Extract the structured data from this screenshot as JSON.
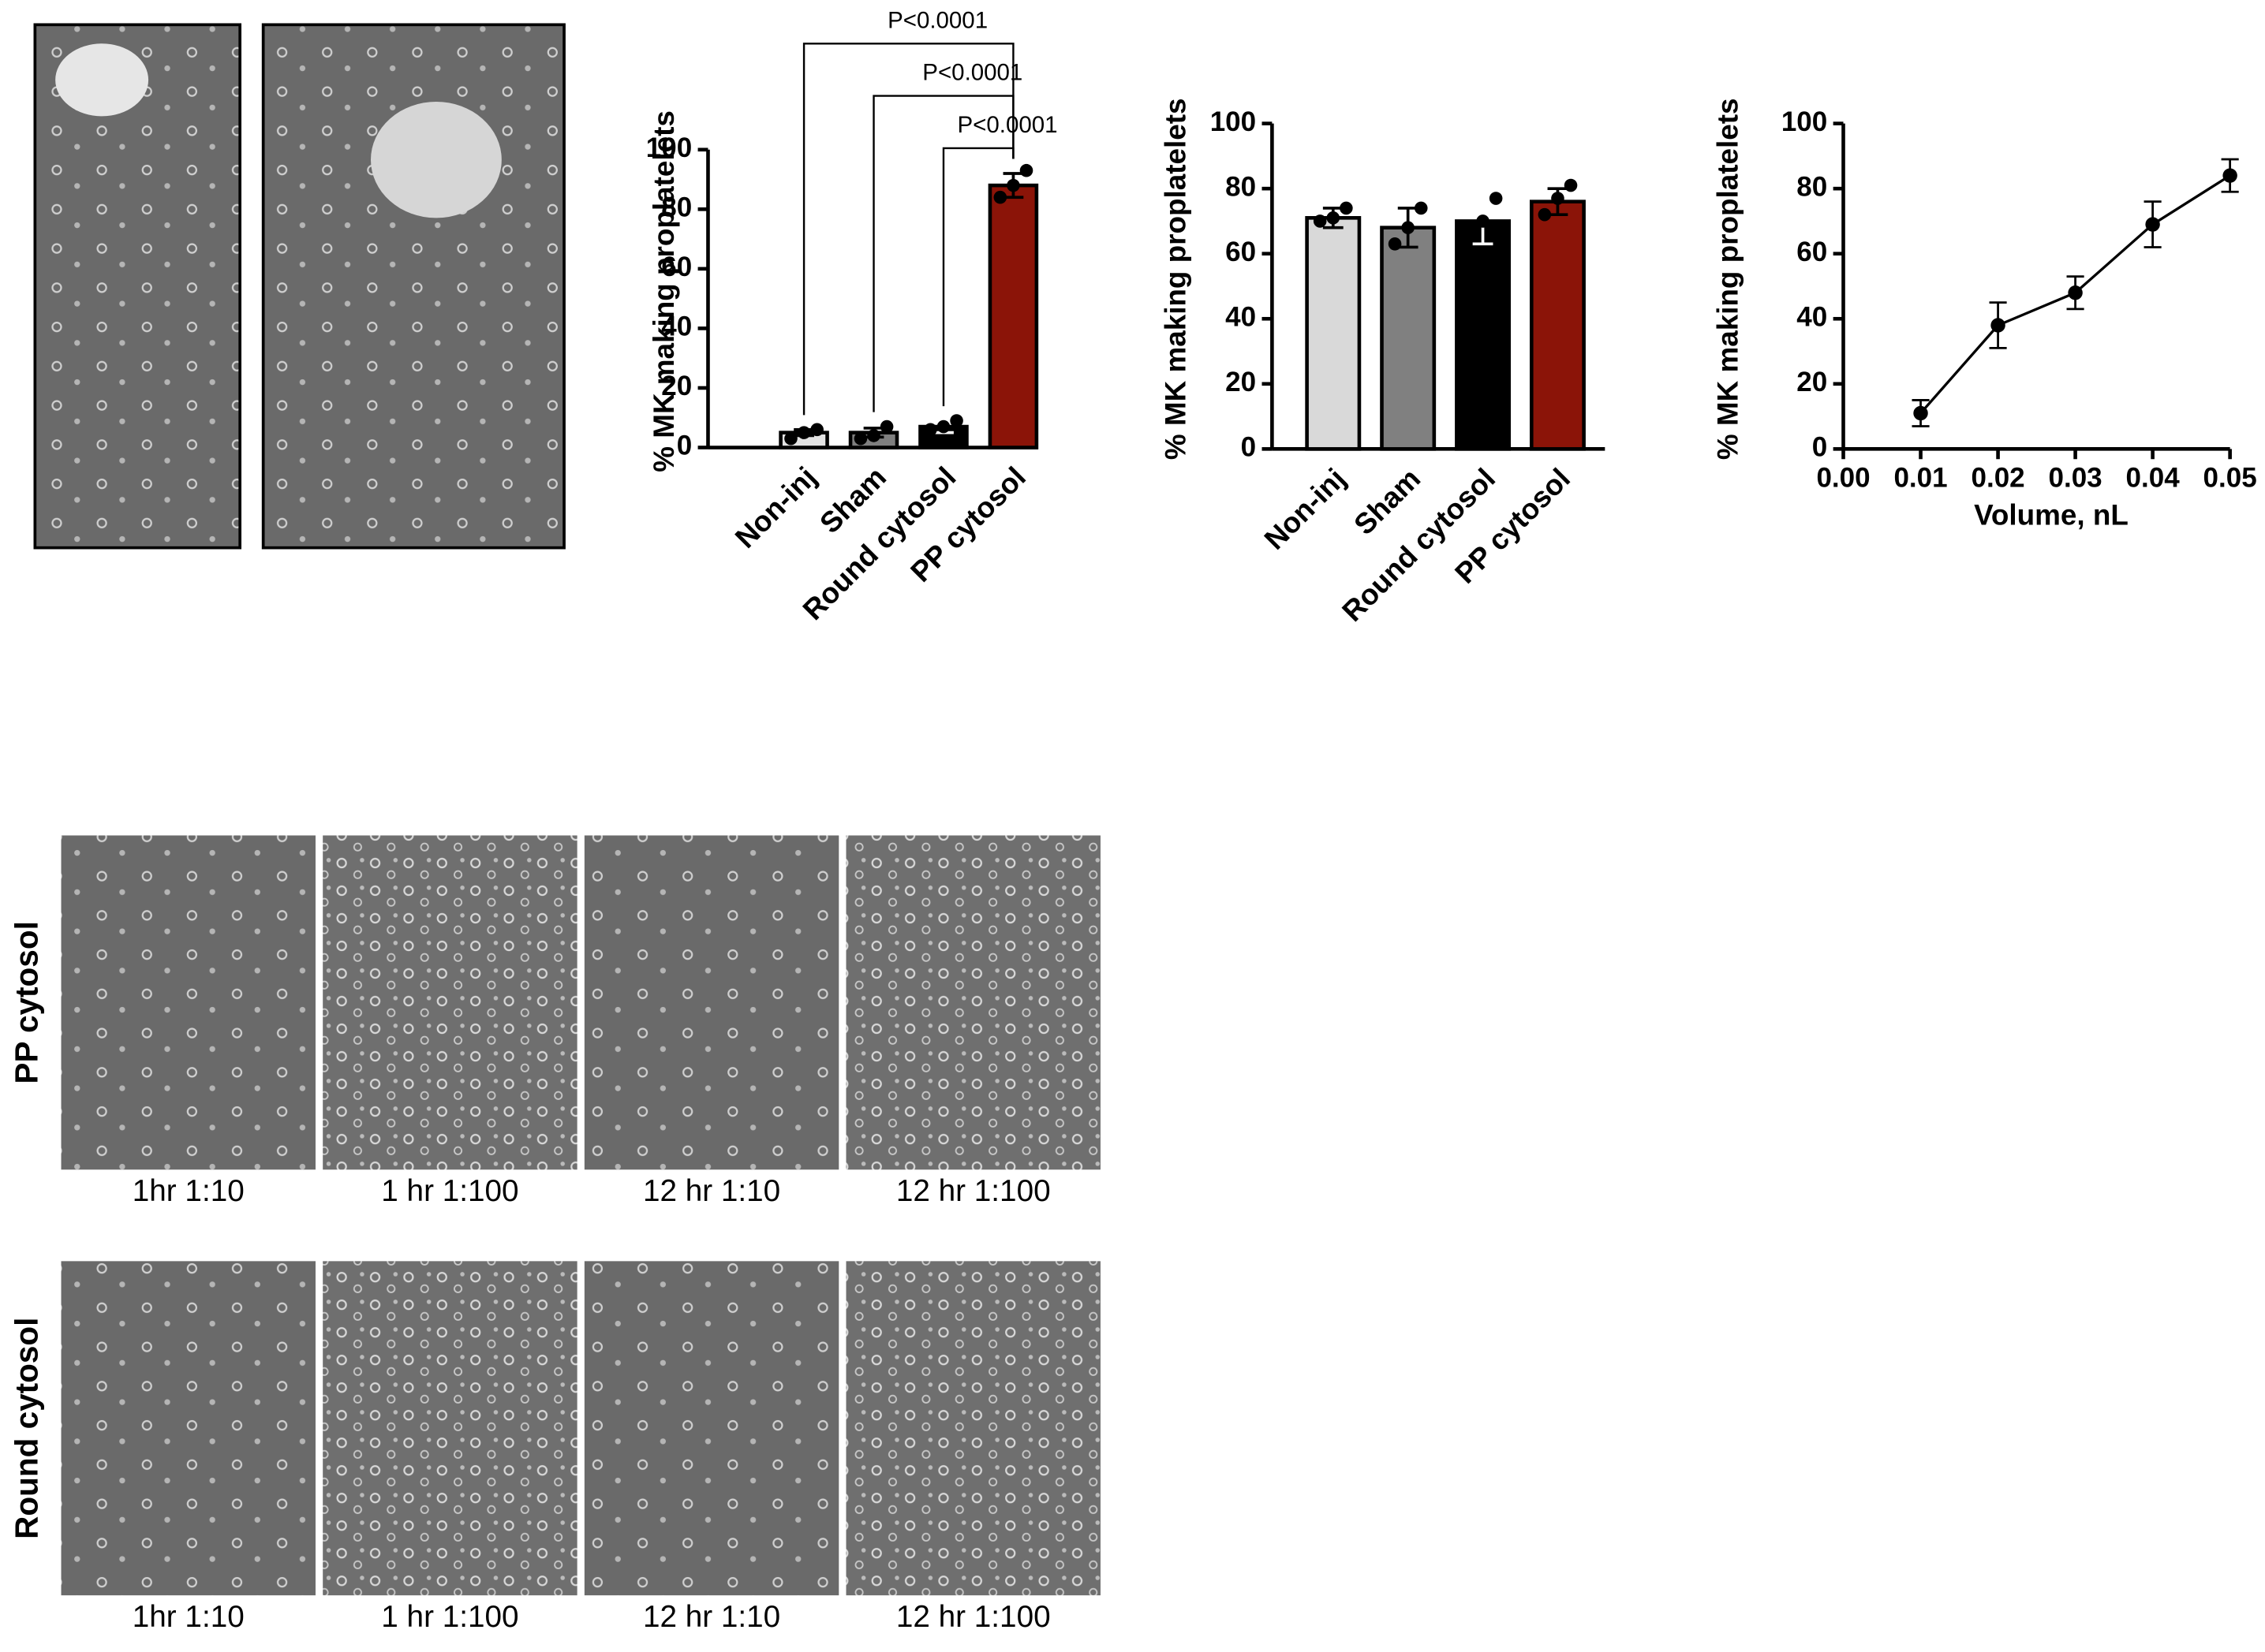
{
  "chart_data": [
    {
      "type": "bar",
      "ylabel": "% MK making proplatelets",
      "categories": [
        "Non-inj",
        "Sham",
        "Round cytosol",
        "PP cytosol"
      ],
      "values": [
        5,
        5,
        7,
        88
      ],
      "errors": [
        1,
        1.5,
        2,
        4
      ],
      "points": [
        [
          3,
          5,
          6
        ],
        [
          3,
          4,
          7
        ],
        [
          6,
          7,
          9
        ],
        [
          84,
          88,
          93
        ]
      ],
      "colors": [
        "#e3e3e3",
        "#7f7f7f",
        "#000000",
        "#8b1408"
      ],
      "ylim": [
        0,
        100
      ],
      "yticks": [
        0,
        20,
        40,
        60,
        80,
        100
      ],
      "comparisons": [
        {
          "pair": [
            "Non-inj",
            "PP cytosol"
          ],
          "label": "P<0.0001"
        },
        {
          "pair": [
            "Sham",
            "PP cytosol"
          ],
          "label": "P<0.0001"
        },
        {
          "pair": [
            "Round cytosol",
            "PP cytosol"
          ],
          "label": "P<0.0001"
        }
      ]
    },
    {
      "type": "bar",
      "ylabel": "% MK making proplatelets",
      "categories": [
        "Non-inj",
        "Sham",
        "Round cytosol",
        "PP cytosol"
      ],
      "values": [
        71,
        68,
        70,
        76
      ],
      "errors": [
        3,
        6,
        7,
        4
      ],
      "points": [
        [
          70,
          71,
          74
        ],
        [
          63,
          68,
          74
        ],
        [
          67,
          70,
          77
        ],
        [
          72,
          77,
          81
        ]
      ],
      "colors": [
        "#d9d9d9",
        "#808080",
        "#000000",
        "#8b1408"
      ],
      "ylim": [
        0,
        100
      ],
      "yticks": [
        0,
        20,
        40,
        60,
        80,
        100
      ]
    },
    {
      "type": "line",
      "ylabel": "% MK making proplatelets",
      "xlabel": "Volume, nL",
      "x": [
        0.01,
        0.02,
        0.03,
        0.04,
        0.05
      ],
      "values": [
        11,
        38,
        48,
        69,
        84
      ],
      "errors": [
        4,
        7,
        5,
        7,
        5
      ],
      "color": "#000000",
      "xlim": [
        0,
        0.05
      ],
      "xticks": [
        {
          "value": 0,
          "label": "0.00"
        },
        0.01,
        0.02,
        0.03,
        0.04,
        0.05
      ],
      "ylim": [
        0,
        100
      ],
      "yticks": [
        0,
        20,
        40,
        60,
        80,
        100
      ]
    }
  ],
  "micrographs": {
    "rows": [
      {
        "label": "PP cytosol",
        "captions": [
          "1hr 1:10",
          "1 hr 1:100",
          "12 hr 1:10",
          "12 hr 1:100"
        ]
      },
      {
        "label": "Round cytosol",
        "captions": [
          "1hr 1:10",
          "1 hr 1:100",
          "12 hr 1:10",
          "12 hr 1:100"
        ]
      }
    ]
  }
}
